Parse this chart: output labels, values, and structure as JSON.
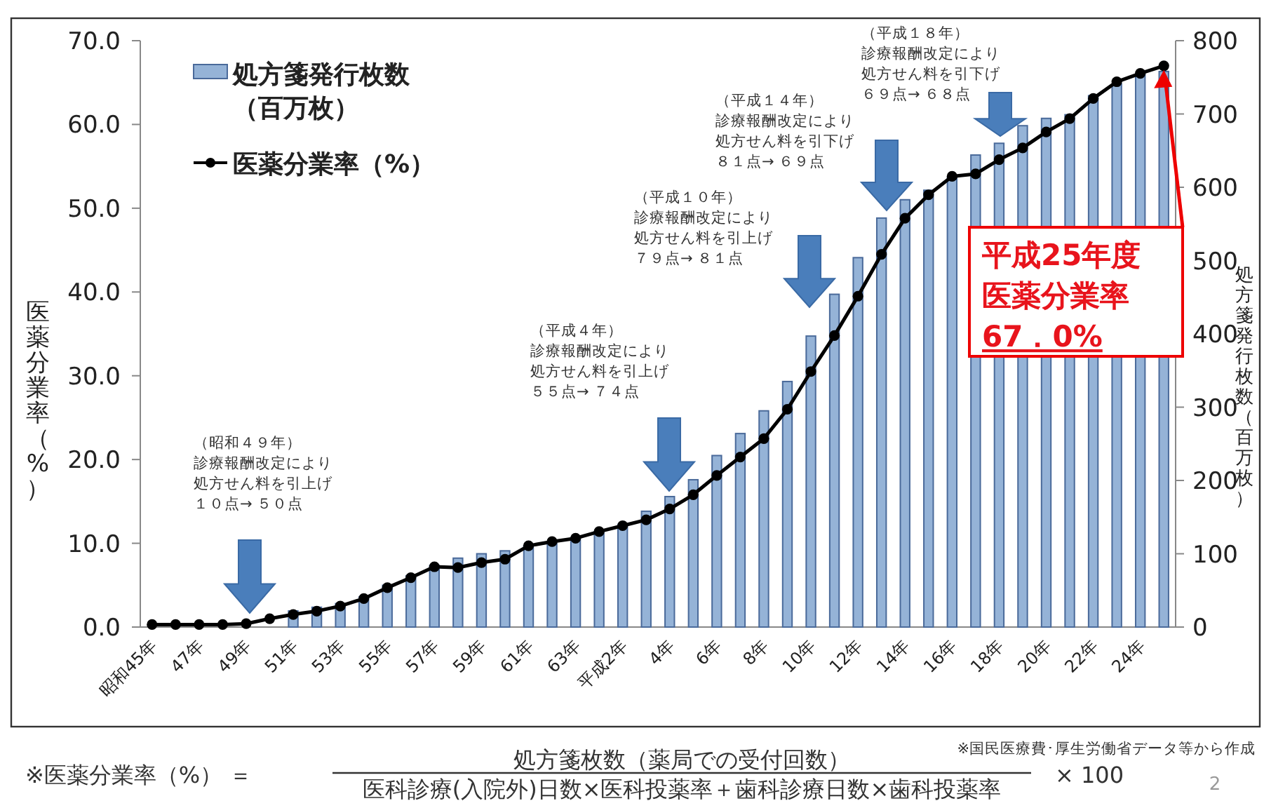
{
  "chart_data": {
    "type": "bar",
    "categories": [
      "昭和45年",
      null,
      "47年",
      null,
      "49年",
      null,
      "51年",
      null,
      "53年",
      null,
      "55年",
      null,
      "57年",
      null,
      "59年",
      null,
      "61年",
      null,
      "63年",
      null,
      "平成2年",
      null,
      "4年",
      null,
      "6年",
      null,
      "8年",
      null,
      "10年",
      null,
      "12年",
      null,
      "14年",
      null,
      "16年",
      null,
      "18年",
      null,
      "20年",
      null,
      "22年",
      null,
      "24年",
      null
    ],
    "series": [
      {
        "name": "処方箋発行枚数（百万枚）",
        "color": "#95b3d7",
        "axis": "y2",
        "values": [
          null,
          null,
          null,
          null,
          null,
          null,
          22,
          27,
          32,
          41,
          57,
          70,
          84,
          94,
          100,
          104,
          111,
          114,
          122,
          130,
          140,
          158,
          178,
          201,
          234,
          264,
          295,
          335,
          397,
          454,
          504,
          558,
          583,
          596,
          613,
          644,
          660,
          684,
          694,
          699,
          725,
          741,
          754,
          758
        ]
      },
      {
        "type": "line",
        "name": "医薬分業率（%）",
        "color": "#000000",
        "values": [
          0.3,
          0.3,
          0.3,
          0.3,
          0.4,
          1.0,
          1.5,
          1.9,
          2.5,
          3.4,
          4.7,
          5.9,
          7.2,
          7.1,
          7.7,
          8.1,
          9.7,
          10.2,
          10.6,
          11.4,
          12.1,
          12.8,
          14.1,
          15.8,
          18.1,
          20.3,
          22.5,
          26.0,
          30.5,
          34.8,
          39.5,
          44.5,
          48.8,
          51.6,
          53.8,
          54.1,
          55.8,
          57.2,
          59.1,
          60.7,
          63.1,
          65.1,
          66.1,
          67.0
        ]
      }
    ],
    "marker": "circle",
    "ylabel": "医薬分業率（%）",
    "y2label": "処方箋発行枚数（百万枚）",
    "ylim": [
      0,
      70
    ],
    "yticks": [
      {
        "value": 0,
        "label": "0.0"
      },
      {
        "value": 10,
        "label": "10.0"
      },
      {
        "value": 20,
        "label": "20.0"
      },
      {
        "value": 30,
        "label": "30.0"
      },
      {
        "value": 40,
        "label": "40.0"
      },
      {
        "value": 50,
        "label": "50.0"
      },
      {
        "value": 60,
        "label": "60.0"
      },
      {
        "value": 70,
        "label": "70.0"
      }
    ],
    "y2lim": [
      0,
      800
    ],
    "y2ticks": [
      0,
      100,
      200,
      300,
      400,
      500,
      600,
      700,
      800
    ],
    "legend": "top left",
    "annotations": [
      "（昭和４９年）",
      "診療報酬改定により",
      "処方せん料を引上げ",
      "１０点→ ５０点",
      "（平成４年）",
      "診療報酬改定により",
      "処方せん料を引上げ",
      "５５点→ ７４点",
      "（平成１０年）",
      "診療報酬改定により",
      "処方せん料を引上げ",
      "７９点→ ８１点",
      "（平成１４年）",
      "診療報酬改定により",
      "処方せん料を引下げ",
      "８１点→ ６９点",
      "（平成１８年）",
      "診療報酬改定により",
      "処方せん料を引下げ",
      "６９点→ ６８点",
      "平成25年度",
      "医薬分業率",
      "67．0%",
      "※医薬分業率（%） ＝",
      "処方箋枚数（薬局での受付回数）",
      "医科診療(入院外)日数×医科投薬率＋歯科診療日数×歯科投薬率",
      "× 100",
      "※国民医療費･厚生労働省データ等から作成",
      "2"
    ]
  }
}
